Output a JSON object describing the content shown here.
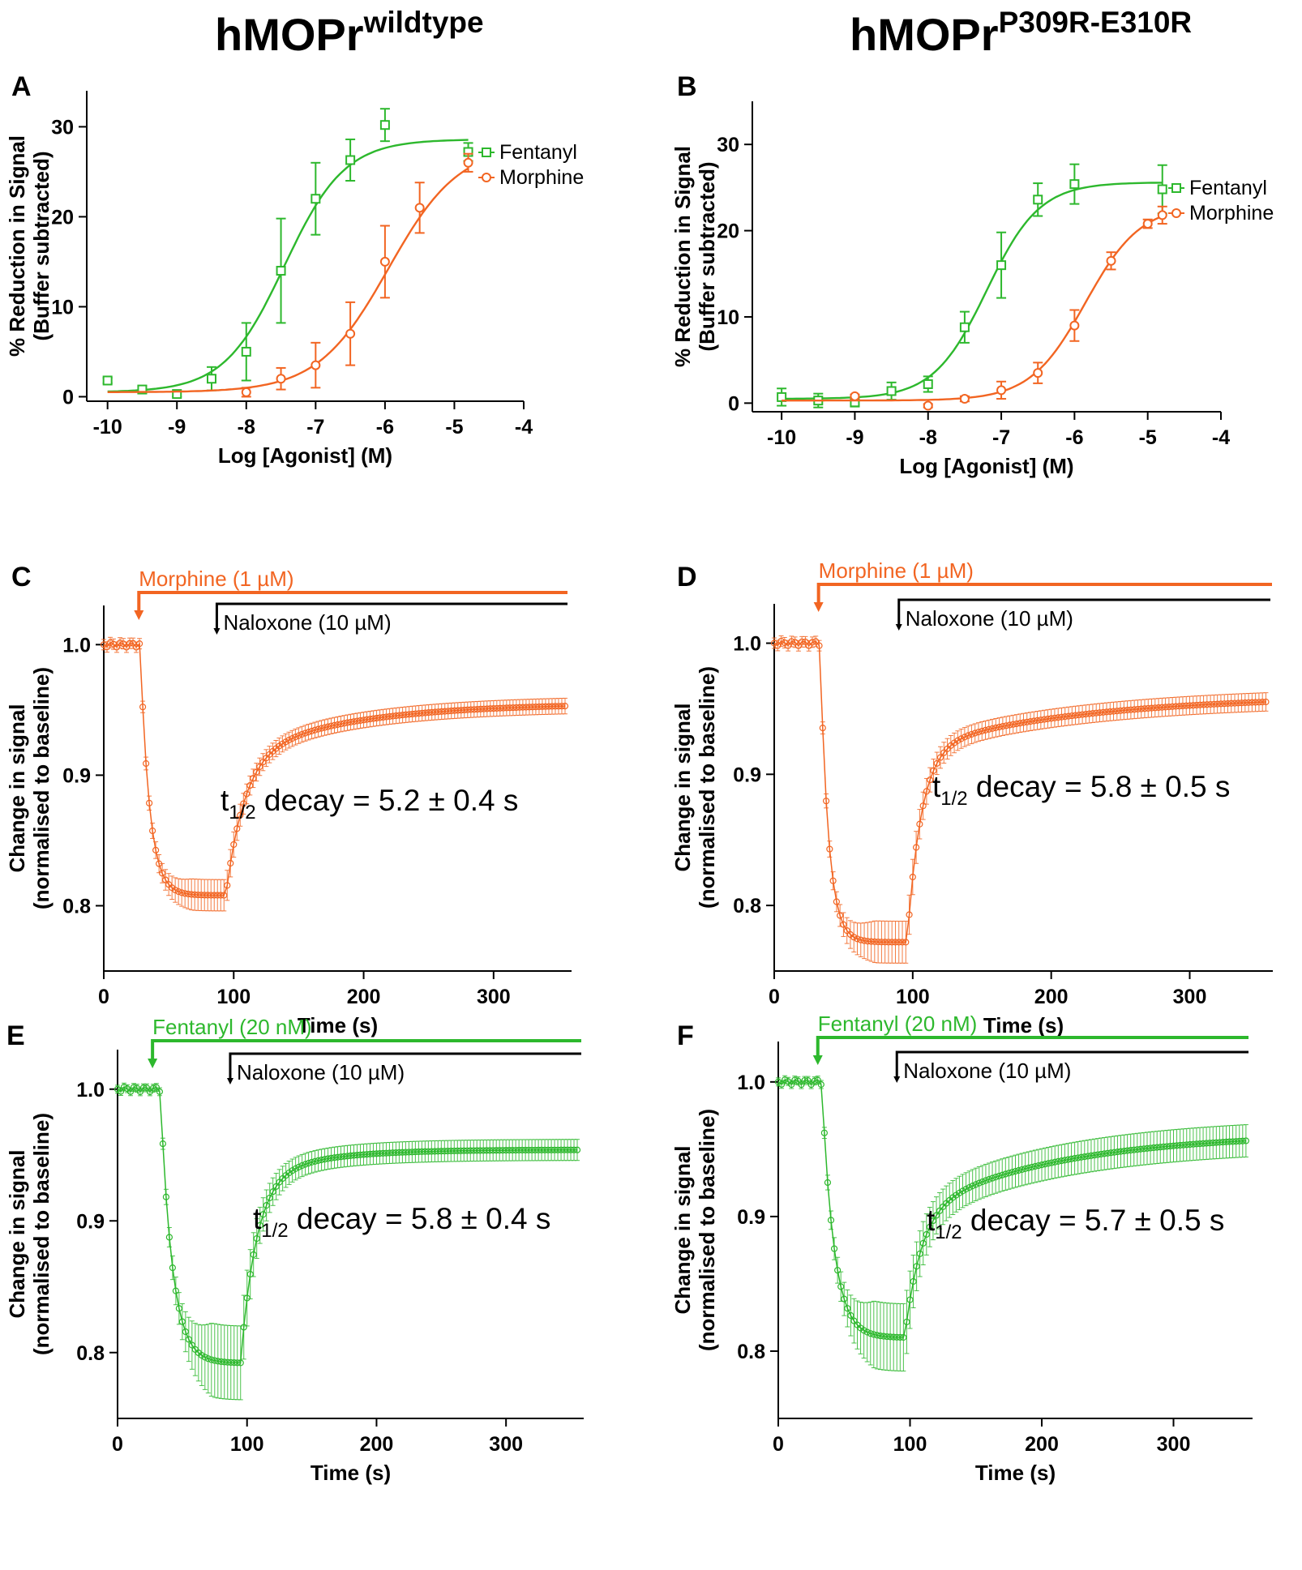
{
  "headers": {
    "left": {
      "base": "hMOPr",
      "sup": "wildtype"
    },
    "right": {
      "base": "hMOPr",
      "sup": "P309R-E310R"
    }
  },
  "colors": {
    "fentanyl": "#2db82d",
    "morphine": "#f26522",
    "fentanyl_light": "#66dd55",
    "morphine_light": "#f5944f",
    "axis": "#000000"
  },
  "chart_data": [
    {
      "panel": "A",
      "type": "scatter",
      "xlabel": "Log [Agonist] (M)",
      "ylabel_lines": [
        "% Reduction in Signal",
        "(Buffer subtracted)"
      ],
      "xlim": [
        -10.3,
        -4
      ],
      "ylim": [
        -0.5,
        34
      ],
      "xticks": [
        -10,
        -9,
        -8,
        -7,
        -6,
        -5,
        -4
      ],
      "yticks": [
        0,
        10,
        20,
        30
      ],
      "legend": [
        "Fentanyl",
        "Morphine"
      ],
      "legend_position": "top-right",
      "series": [
        {
          "name": "Fentanyl",
          "color_key": "fentanyl",
          "marker": "square",
          "x": [
            -10,
            -9.5,
            -9,
            -8.5,
            -8,
            -7.5,
            -7,
            -6.5,
            -6,
            -4.8
          ],
          "y": [
            1.8,
            0.8,
            0.3,
            2.0,
            5.0,
            14.0,
            22.0,
            26.3,
            30.2,
            27.2
          ],
          "err": [
            0.3,
            0.4,
            0.3,
            1.3,
            3.2,
            5.8,
            4.0,
            2.3,
            1.8,
            1.0
          ],
          "fit": {
            "bottom": 0.5,
            "top": 28.6,
            "logEC50": -7.45,
            "hill": 1.0
          }
        },
        {
          "name": "Morphine",
          "color_key": "morphine",
          "marker": "circle",
          "x": [
            -8,
            -7.5,
            -7,
            -6.5,
            -6,
            -5.5,
            -4.8
          ],
          "y": [
            0.5,
            2.0,
            3.5,
            7.0,
            15.0,
            21.0,
            26.0
          ],
          "err": [
            0.5,
            1.2,
            2.5,
            3.5,
            4.0,
            2.8,
            1.0
          ],
          "fit": {
            "bottom": 0.5,
            "top": 28.0,
            "logEC50": -5.95,
            "hill": 0.85
          }
        }
      ]
    },
    {
      "panel": "B",
      "type": "scatter",
      "xlabel": "Log [Agonist] (M)",
      "ylabel_lines": [
        "% Reduction in Signal",
        "(Buffer subtracted)"
      ],
      "xlim": [
        -10.4,
        -4
      ],
      "ylim": [
        -1,
        35
      ],
      "xticks": [
        -10,
        -9,
        -8,
        -7,
        -6,
        -5,
        -4
      ],
      "yticks": [
        0,
        10,
        20,
        30
      ],
      "legend": [
        "Fentanyl",
        "Morphine"
      ],
      "legend_position": "right",
      "series": [
        {
          "name": "Fentanyl",
          "color_key": "fentanyl",
          "marker": "square",
          "x": [
            -10,
            -9.5,
            -9,
            -8.5,
            -8,
            -7.5,
            -7,
            -6.5,
            -6,
            -4.8
          ],
          "y": [
            0.7,
            0.3,
            0.1,
            1.4,
            2.2,
            8.8,
            16.0,
            23.6,
            25.4,
            24.8
          ],
          "err": [
            1.0,
            0.8,
            0.5,
            1.0,
            0.9,
            1.8,
            3.8,
            1.9,
            2.3,
            2.8
          ],
          "fit": {
            "bottom": 0.5,
            "top": 25.6,
            "logEC50": -7.2,
            "hill": 1.2
          }
        },
        {
          "name": "Morphine",
          "color_key": "morphine",
          "marker": "circle",
          "x": [
            -9,
            -8,
            -7.5,
            -7,
            -6.5,
            -6,
            -5.5,
            -5,
            -4.8
          ],
          "y": [
            0.8,
            -0.3,
            0.5,
            1.5,
            3.5,
            9.0,
            16.5,
            20.8,
            21.8
          ],
          "err": [
            0.2,
            0.2,
            0.3,
            1.0,
            1.2,
            1.8,
            1.0,
            0.5,
            1.0
          ],
          "fit": {
            "bottom": 0.3,
            "top": 23.0,
            "logEC50": -5.85,
            "hill": 1.15
          }
        }
      ]
    },
    {
      "panel": "C",
      "type": "line",
      "xlabel": "Time (s)",
      "ylabel_lines": [
        "Change in signal",
        "(normalised to baseline)"
      ],
      "xlim": [
        0,
        360
      ],
      "ylim": [
        0.75,
        1.03
      ],
      "xticks": [
        0,
        100,
        200,
        300
      ],
      "yticks": [
        0.8,
        0.9,
        1.0
      ],
      "agonist": "Morphine (1 µM)",
      "agonist_time": 27,
      "antagonist": "Naloxone (10 µM)",
      "antagonist_time": 87,
      "decay_prefix": "t",
      "decay_sub": "1/2",
      "decay_value": " decay = 5.2 ± 0.4 s",
      "series": [
        {
          "name": "Morphine (1 µM)",
          "color_key": "morphine",
          "baseline": 1.0,
          "agonist_onset": 28,
          "min": 0.808,
          "tau_fall": 7,
          "onset": 94,
          "plateau": 0.955,
          "tau1": 14,
          "frac_fast": 0.7,
          "tau2": 85,
          "err_baseline": 0.004,
          "err_min": 0.012,
          "err_recovery": 0.006
        }
      ]
    },
    {
      "panel": "D",
      "type": "line",
      "xlabel": "Time (s)",
      "ylabel_lines": [
        "Change in signal",
        "(normalised to baseline)"
      ],
      "xlim": [
        0,
        360
      ],
      "ylim": [
        0.75,
        1.03
      ],
      "xticks": [
        0,
        100,
        200,
        300
      ],
      "yticks": [
        0.8,
        0.9,
        1.0
      ],
      "agonist": "Morphine (1 µM)",
      "agonist_time": 32,
      "antagonist": "Naloxone (10 µM)",
      "antagonist_time": 90,
      "decay_prefix": "t",
      "decay_sub": "1/2",
      "decay_value": " decay = 5.8 ± 0.5 s",
      "series": [
        {
          "name": "Morphine (1 µM)",
          "color_key": "morphine",
          "baseline": 1.0,
          "agonist_onset": 33,
          "min": 0.772,
          "tau_fall": 6,
          "onset": 96,
          "plateau": 0.96,
          "tau1": 10,
          "frac_fast": 0.78,
          "tau2": 120,
          "err_baseline": 0.004,
          "err_min": 0.016,
          "err_recovery": 0.007
        }
      ]
    },
    {
      "panel": "E",
      "type": "line",
      "xlabel": "Time (s)",
      "ylabel_lines": [
        "Change in signal",
        "(normalised to baseline)"
      ],
      "xlim": [
        0,
        360
      ],
      "ylim": [
        0.75,
        1.03
      ],
      "xticks": [
        0,
        100,
        200,
        300
      ],
      "yticks": [
        0.8,
        0.9,
        1.0
      ],
      "agonist": "Fentanyl (20 nM)",
      "agonist_time": 27,
      "antagonist": "Naloxone (10 µM)",
      "antagonist_time": 87,
      "decay_prefix": "t",
      "decay_sub": "1/2",
      "decay_value": " decay = 5.8 ± 0.4 s",
      "series": [
        {
          "name": "Fentanyl (20 nM)",
          "color_key": "fentanyl",
          "baseline": 1.0,
          "agonist_onset": 33,
          "min": 0.792,
          "tau_fall": 9,
          "onset": 95,
          "plateau": 0.954,
          "tau1": 12,
          "frac_fast": 0.85,
          "tau2": 50,
          "err_baseline": 0.003,
          "err_min": 0.028,
          "err_recovery": 0.008
        }
      ]
    },
    {
      "panel": "F",
      "type": "line",
      "xlabel": "Time (s)",
      "ylabel_lines": [
        "Change in signal",
        "(normalised to baseline)"
      ],
      "xlim": [
        0,
        360
      ],
      "ylim": [
        0.75,
        1.03
      ],
      "xticks": [
        0,
        100,
        200,
        300
      ],
      "yticks": [
        0.8,
        0.9,
        1.0
      ],
      "agonist": "Fentanyl (20 nM)",
      "agonist_time": 30,
      "antagonist": "Naloxone (10 µM)",
      "antagonist_time": 90,
      "decay_prefix": "t",
      "decay_sub": "1/2",
      "decay_value": " decay = 5.7 ± 0.5 s",
      "series": [
        {
          "name": "Fentanyl (20 nM)",
          "color_key": "fentanyl",
          "baseline": 1.0,
          "agonist_onset": 33,
          "min": 0.81,
          "tau_fall": 9,
          "onset": 96,
          "plateau": 0.962,
          "tau1": 12,
          "frac_fast": 0.6,
          "tau2": 110,
          "err_baseline": 0.003,
          "err_min": 0.025,
          "err_recovery": 0.012
        }
      ]
    }
  ]
}
